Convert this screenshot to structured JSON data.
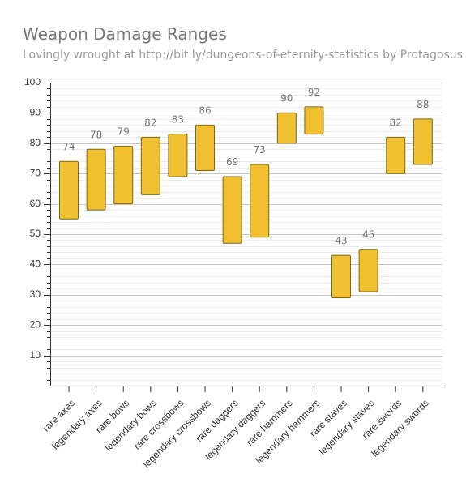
{
  "chart_data": {
    "type": "bar",
    "title": "Weapon Damage Ranges",
    "subtitle": "Lovingly wrought at http://bit.ly/dungeons-of-eternity-statistics by Protagosus",
    "categories": [
      "rare axes",
      "legendary axes",
      "rare bows",
      "legendary bows",
      "rare crossbows",
      "legendary crossbows",
      "rare daggers",
      "legendary daggers",
      "rare hammers",
      "legendary hammers",
      "rare staves",
      "legendary staves",
      "rare swords",
      "legendary swords"
    ],
    "series": [
      {
        "low": [
          55,
          58,
          60,
          63,
          69,
          71,
          47,
          49,
          80,
          83,
          29,
          31,
          70,
          73
        ],
        "high": [
          74,
          78,
          79,
          82,
          83,
          86,
          69,
          73,
          90,
          92,
          43,
          45,
          82,
          88
        ]
      }
    ],
    "ylim": [
      0,
      100
    ],
    "yticks": [
      10,
      20,
      30,
      40,
      50,
      60,
      70,
      80,
      90,
      100
    ],
    "grid": true,
    "colors": {
      "bar": "#f0c030",
      "bar_border": "#7a6a1a"
    }
  }
}
